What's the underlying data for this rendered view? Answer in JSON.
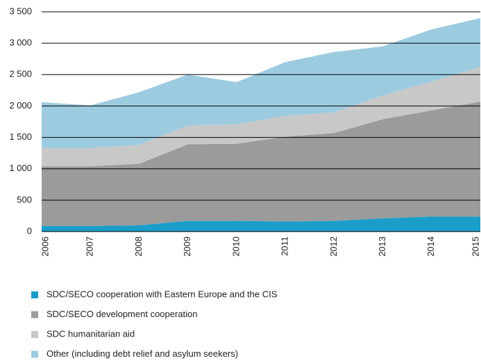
{
  "chart_data": {
    "type": "stacked-area",
    "categories": [
      "2006",
      "2007",
      "2008",
      "2009",
      "2010",
      "2011",
      "2012",
      "2013",
      "2014",
      "2015"
    ],
    "series": [
      {
        "name": "SDC/SECO cooperation with Eastern Europe and the CIS",
        "color": "#1a9ec9",
        "values": [
          90,
          90,
          100,
          170,
          170,
          160,
          170,
          210,
          240,
          240
        ]
      },
      {
        "name": "SDC/SECO development cooperation",
        "color": "#9b9b9b",
        "values": [
          950,
          950,
          980,
          1220,
          1230,
          1350,
          1400,
          1580,
          1690,
          1830
        ]
      },
      {
        "name": "SDC humanitarian aid",
        "color": "#c8c8c8",
        "values": [
          290,
          290,
          300,
          300,
          310,
          330,
          330,
          380,
          460,
          550
        ]
      },
      {
        "name": "Other (including debt relief and asylum seekers)",
        "color": "#9ccbe0",
        "values": [
          730,
          680,
          840,
          810,
          670,
          860,
          960,
          780,
          830,
          780
        ]
      }
    ],
    "ylim": [
      0,
      3500
    ],
    "yticks": [
      0,
      500,
      {
        "value": 1000,
        "label": "1 000"
      },
      {
        "value": 1500,
        "label": "1 500"
      },
      {
        "value": 2000,
        "label": "2 000"
      },
      {
        "value": 2500,
        "label": "2 500"
      },
      {
        "value": 3000,
        "label": "3 000"
      },
      {
        "value": 3500,
        "label": "3 500"
      }
    ],
    "grid": true
  }
}
